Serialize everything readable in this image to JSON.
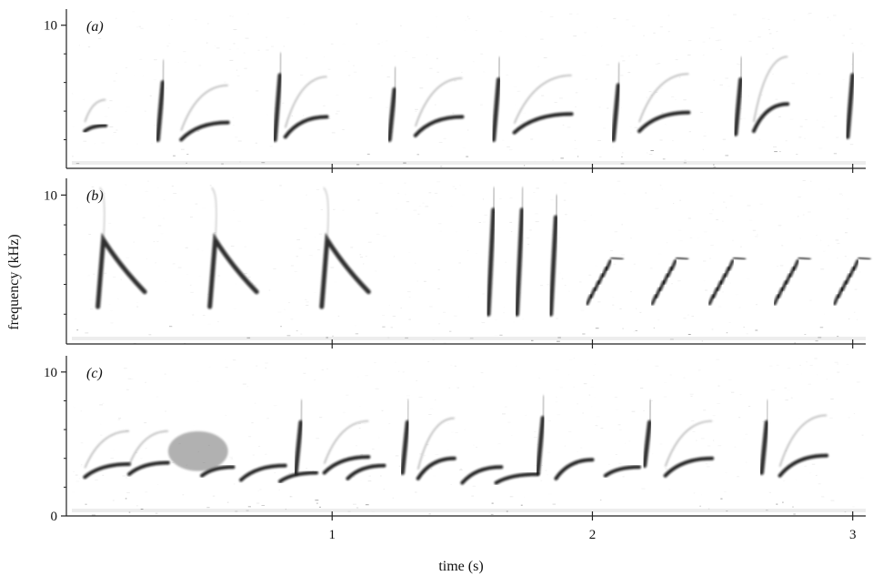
{
  "chart_data": {
    "type": "spectrogram",
    "xlabel": "time (s)",
    "ylabel": "frequency (kHz)",
    "xlim": [
      0,
      3.05
    ],
    "x_ticks": [
      1,
      2,
      3
    ],
    "x_tick_labels": [
      "1",
      "2",
      "3"
    ],
    "panels": [
      {
        "label": "(a)",
        "ylim": [
          0,
          11
        ],
        "y_tick_labels": [
          "10"
        ],
        "notes": [
          {
            "t": 0.05,
            "t_end": 0.13,
            "f_start": 2.6,
            "f_end": 3.0,
            "shape": "rise",
            "harmonic": true
          },
          {
            "t": 0.33,
            "t_end": 0.35,
            "f_start": 2.0,
            "f_end": 6.0,
            "shape": "vertical"
          },
          {
            "t": 0.42,
            "t_end": 0.6,
            "f_start": 2.0,
            "f_end": 3.2,
            "shape": "rise",
            "harmonic": true
          },
          {
            "t": 0.78,
            "t_end": 0.8,
            "f_start": 2.0,
            "f_end": 6.5,
            "shape": "vertical"
          },
          {
            "t": 0.82,
            "t_end": 0.98,
            "f_start": 2.2,
            "f_end": 3.6,
            "shape": "rise",
            "harmonic": true
          },
          {
            "t": 1.22,
            "t_end": 1.24,
            "f_start": 2.0,
            "f_end": 5.5,
            "shape": "vertical"
          },
          {
            "t": 1.32,
            "t_end": 1.5,
            "f_start": 2.3,
            "f_end": 3.6,
            "shape": "rise",
            "harmonic": true
          },
          {
            "t": 1.62,
            "t_end": 1.64,
            "f_start": 2.0,
            "f_end": 6.2,
            "shape": "vertical"
          },
          {
            "t": 1.7,
            "t_end": 1.92,
            "f_start": 2.5,
            "f_end": 3.8,
            "shape": "rise",
            "harmonic": true
          },
          {
            "t": 2.08,
            "t_end": 2.1,
            "f_start": 2.0,
            "f_end": 5.8,
            "shape": "vertical"
          },
          {
            "t": 2.18,
            "t_end": 2.37,
            "f_start": 2.6,
            "f_end": 3.9,
            "shape": "rise",
            "harmonic": true
          },
          {
            "t": 2.55,
            "t_end": 2.57,
            "f_start": 2.4,
            "f_end": 6.2,
            "shape": "vertical"
          },
          {
            "t": 2.62,
            "t_end": 2.75,
            "f_start": 2.6,
            "f_end": 4.5,
            "shape": "rise",
            "harmonic": true
          },
          {
            "t": 2.98,
            "t_end": 3.0,
            "f_start": 2.2,
            "f_end": 6.5,
            "shape": "vertical"
          }
        ]
      },
      {
        "label": "(b)",
        "ylim": [
          0,
          11
        ],
        "y_tick_labels": [
          "10"
        ],
        "notes": [
          {
            "t": 0.1,
            "t_end": 0.28,
            "f_start": 7.0,
            "f_end": 3.5,
            "shape": "fall"
          },
          {
            "t": 0.53,
            "t_end": 0.71,
            "f_start": 7.0,
            "f_end": 3.5,
            "shape": "fall"
          },
          {
            "t": 0.96,
            "t_end": 1.14,
            "f_start": 7.0,
            "f_end": 3.5,
            "shape": "fall"
          },
          {
            "t": 1.6,
            "t_end": 1.62,
            "f_start": 2.0,
            "f_end": 9.0,
            "shape": "vertical"
          },
          {
            "t": 1.71,
            "t_end": 1.73,
            "f_start": 2.0,
            "f_end": 9.0,
            "shape": "vertical"
          },
          {
            "t": 1.84,
            "t_end": 1.86,
            "f_start": 2.0,
            "f_end": 8.5,
            "shape": "vertical"
          },
          {
            "t": 1.98,
            "t_end": 2.07,
            "f_start": 3.0,
            "f_end": 5.8,
            "shape": "rise-steps"
          },
          {
            "t": 2.23,
            "t_end": 2.32,
            "f_start": 3.0,
            "f_end": 5.8,
            "shape": "rise-steps"
          },
          {
            "t": 2.45,
            "t_end": 2.54,
            "f_start": 3.0,
            "f_end": 5.8,
            "shape": "rise-steps"
          },
          {
            "t": 2.7,
            "t_end": 2.79,
            "f_start": 3.0,
            "f_end": 5.8,
            "shape": "rise-steps"
          },
          {
            "t": 2.93,
            "t_end": 3.02,
            "f_start": 3.0,
            "f_end": 5.8,
            "shape": "rise-steps"
          }
        ]
      },
      {
        "label": "(c)",
        "ylim": [
          0,
          11
        ],
        "y_tick_labels": [
          "0",
          "10"
        ],
        "notes": [
          {
            "t": 0.05,
            "t_end": 0.22,
            "f_start": 2.7,
            "f_end": 3.6,
            "shape": "rise",
            "harmonic": true
          },
          {
            "t": 0.22,
            "t_end": 0.37,
            "f_start": 2.9,
            "f_end": 3.7,
            "shape": "rise",
            "harmonic": true
          },
          {
            "t": 0.37,
            "t_end": 0.6,
            "f_start": 3.5,
            "f_end": 5.5,
            "shape": "noise"
          },
          {
            "t": 0.5,
            "t_end": 0.62,
            "f_start": 2.8,
            "f_end": 3.4,
            "shape": "rise"
          },
          {
            "t": 0.65,
            "t_end": 0.82,
            "f_start": 2.5,
            "f_end": 3.5,
            "shape": "rise"
          },
          {
            "t": 0.8,
            "t_end": 0.94,
            "f_start": 2.4,
            "f_end": 3.0,
            "shape": "rise"
          },
          {
            "t": 0.86,
            "t_end": 0.88,
            "f_start": 3.0,
            "f_end": 6.5,
            "shape": "vertical"
          },
          {
            "t": 0.97,
            "t_end": 1.14,
            "f_start": 3.0,
            "f_end": 4.1,
            "shape": "rise",
            "harmonic": true
          },
          {
            "t": 1.06,
            "t_end": 1.2,
            "f_start": 2.6,
            "f_end": 3.5,
            "shape": "rise"
          },
          {
            "t": 1.27,
            "t_end": 1.29,
            "f_start": 3.0,
            "f_end": 6.5,
            "shape": "vertical"
          },
          {
            "t": 1.33,
            "t_end": 1.47,
            "f_start": 2.6,
            "f_end": 4.0,
            "shape": "rise",
            "harmonic": true
          },
          {
            "t": 1.5,
            "t_end": 1.65,
            "f_start": 2.3,
            "f_end": 3.4,
            "shape": "rise"
          },
          {
            "t": 1.63,
            "t_end": 1.79,
            "f_start": 2.3,
            "f_end": 2.9,
            "shape": "rise"
          },
          {
            "t": 1.79,
            "t_end": 1.81,
            "f_start": 3.0,
            "f_end": 6.8,
            "shape": "vertical"
          },
          {
            "t": 1.86,
            "t_end": 2.0,
            "f_start": 2.6,
            "f_end": 3.9,
            "shape": "rise"
          },
          {
            "t": 2.05,
            "t_end": 2.18,
            "f_start": 2.8,
            "f_end": 3.4,
            "shape": "rise"
          },
          {
            "t": 2.2,
            "t_end": 2.22,
            "f_start": 3.5,
            "f_end": 6.5,
            "shape": "vertical"
          },
          {
            "t": 2.28,
            "t_end": 2.46,
            "f_start": 2.8,
            "f_end": 4.0,
            "shape": "rise",
            "harmonic": true
          },
          {
            "t": 2.65,
            "t_end": 2.67,
            "f_start": 3.0,
            "f_end": 6.5,
            "shape": "vertical"
          },
          {
            "t": 2.72,
            "t_end": 2.9,
            "f_start": 2.8,
            "f_end": 4.2,
            "shape": "rise",
            "harmonic": true
          }
        ]
      }
    ]
  }
}
